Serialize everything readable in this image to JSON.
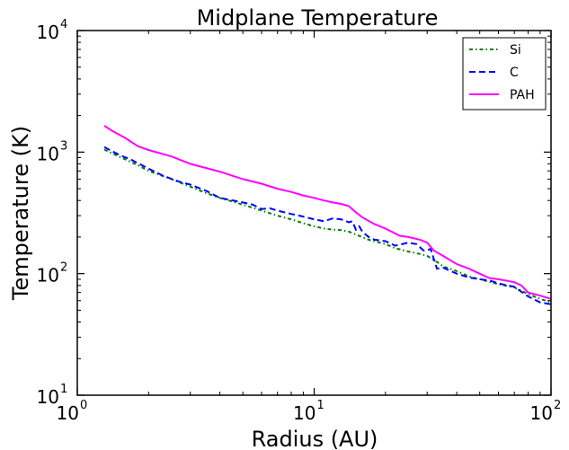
{
  "chart_data": {
    "type": "line",
    "title": "Midplane Temperature",
    "xlabel": "Radius (AU)",
    "ylabel": "Temperature (K)",
    "xscale": "log",
    "yscale": "log",
    "xlim": [
      1,
      100
    ],
    "ylim": [
      10,
      10000
    ],
    "x_ticks": [
      {
        "base": "10",
        "exp": "0",
        "value": 1
      },
      {
        "base": "10",
        "exp": "1",
        "value": 10
      },
      {
        "base": "10",
        "exp": "2",
        "value": 100
      }
    ],
    "y_ticks": [
      {
        "base": "10",
        "exp": "1",
        "value": 10
      },
      {
        "base": "10",
        "exp": "2",
        "value": 100
      },
      {
        "base": "10",
        "exp": "3",
        "value": 1000
      },
      {
        "base": "10",
        "exp": "4",
        "value": 10000
      }
    ],
    "grid": false,
    "legend_position": "top-right",
    "series": [
      {
        "name": "Si",
        "color": "#008000",
        "style": "dashdot",
        "points": [
          [
            1.3,
            1050
          ],
          [
            1.5,
            920
          ],
          [
            1.8,
            780
          ],
          [
            2.0,
            700
          ],
          [
            2.5,
            600
          ],
          [
            3.0,
            520
          ],
          [
            3.5,
            460
          ],
          [
            4.0,
            420
          ],
          [
            5.0,
            370
          ],
          [
            6.0,
            330
          ],
          [
            7.0,
            300
          ],
          [
            8.0,
            280
          ],
          [
            9.0,
            260
          ],
          [
            10.0,
            245
          ],
          [
            11.0,
            235
          ],
          [
            12.0,
            230
          ],
          [
            13.0,
            228
          ],
          [
            14.0,
            222
          ],
          [
            15.0,
            210
          ],
          [
            17.0,
            190
          ],
          [
            20.0,
            175
          ],
          [
            22.0,
            162
          ],
          [
            25.0,
            152
          ],
          [
            28.0,
            145
          ],
          [
            30.0,
            140
          ],
          [
            33.0,
            125
          ],
          [
            35.0,
            115
          ],
          [
            40.0,
            105
          ],
          [
            45.0,
            95
          ],
          [
            50.0,
            90
          ],
          [
            60.0,
            82
          ],
          [
            70.0,
            77
          ],
          [
            80.0,
            68
          ],
          [
            90.0,
            62
          ],
          [
            100.0,
            58
          ]
        ]
      },
      {
        "name": "C",
        "color": "#0000FF",
        "style": "dashed",
        "points": [
          [
            1.3,
            1100
          ],
          [
            1.5,
            950
          ],
          [
            1.7,
            860
          ],
          [
            2.0,
            730
          ],
          [
            2.3,
            640
          ],
          [
            2.7,
            570
          ],
          [
            3.0,
            540
          ],
          [
            3.5,
            480
          ],
          [
            4.0,
            420
          ],
          [
            5.0,
            385
          ],
          [
            5.5,
            370
          ],
          [
            6.0,
            340
          ],
          [
            6.5,
            345
          ],
          [
            7.0,
            330
          ],
          [
            8.0,
            310
          ],
          [
            9.0,
            295
          ],
          [
            10.0,
            280
          ],
          [
            11.0,
            270
          ],
          [
            12.0,
            285
          ],
          [
            13.0,
            280
          ],
          [
            14.0,
            265
          ],
          [
            14.5,
            270
          ],
          [
            15.0,
            230
          ],
          [
            15.5,
            245
          ],
          [
            16.0,
            220
          ],
          [
            17.0,
            200
          ],
          [
            18.0,
            190
          ],
          [
            20.0,
            185
          ],
          [
            22.0,
            170
          ],
          [
            25.0,
            180
          ],
          [
            27.0,
            175
          ],
          [
            29.0,
            155
          ],
          [
            30.0,
            155
          ],
          [
            31.0,
            160
          ],
          [
            33.0,
            110
          ],
          [
            35.0,
            112
          ],
          [
            40.0,
            100
          ],
          [
            45.0,
            93
          ],
          [
            50.0,
            90
          ],
          [
            55.0,
            88
          ],
          [
            60.0,
            83
          ],
          [
            70.0,
            78
          ],
          [
            80.0,
            65
          ],
          [
            90.0,
            58
          ],
          [
            100.0,
            56
          ]
        ]
      },
      {
        "name": "PAH",
        "color": "#FF00FF",
        "style": "solid",
        "points": [
          [
            1.3,
            1650
          ],
          [
            1.4,
            1500
          ],
          [
            1.6,
            1300
          ],
          [
            1.8,
            1120
          ],
          [
            2.0,
            1040
          ],
          [
            2.5,
            920
          ],
          [
            3.0,
            800
          ],
          [
            4.0,
            690
          ],
          [
            5.0,
            600
          ],
          [
            6.0,
            550
          ],
          [
            7.0,
            500
          ],
          [
            8.0,
            470
          ],
          [
            9.0,
            440
          ],
          [
            10.0,
            420
          ],
          [
            11.0,
            400
          ],
          [
            12.0,
            385
          ],
          [
            13.0,
            375
          ],
          [
            14.0,
            360
          ],
          [
            15.0,
            320
          ],
          [
            16.0,
            290
          ],
          [
            18.0,
            255
          ],
          [
            20.0,
            235
          ],
          [
            23.0,
            205
          ],
          [
            25.0,
            200
          ],
          [
            28.0,
            190
          ],
          [
            30.0,
            180
          ],
          [
            32.0,
            155
          ],
          [
            35.0,
            140
          ],
          [
            40.0,
            120
          ],
          [
            45.0,
            110
          ],
          [
            50.0,
            100
          ],
          [
            55.0,
            92
          ],
          [
            60.0,
            90
          ],
          [
            70.0,
            85
          ],
          [
            75.0,
            80
          ],
          [
            80.0,
            70
          ],
          [
            90.0,
            66
          ],
          [
            100.0,
            62
          ]
        ]
      }
    ]
  }
}
